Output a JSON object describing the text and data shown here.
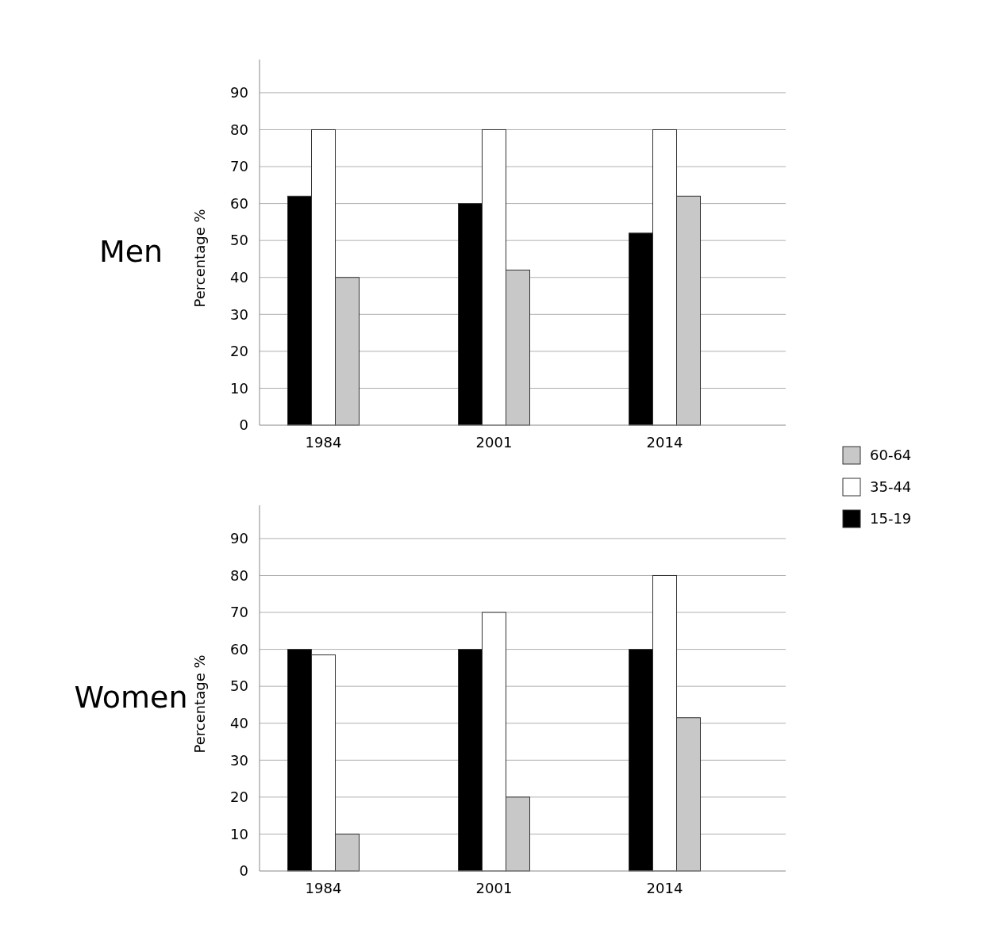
{
  "chart_data": [
    {
      "type": "bar",
      "title": "Men",
      "ylabel": "Percentage %",
      "categories": [
        "1984",
        "2001",
        "2014"
      ],
      "series": [
        {
          "name": "15-19",
          "color": "#000000",
          "values": [
            62,
            60,
            52
          ]
        },
        {
          "name": "35-44",
          "color": "#ffffff",
          "values": [
            80,
            80,
            80
          ]
        },
        {
          "name": "60-64",
          "color": "#c8c8c8",
          "values": [
            40,
            42,
            62
          ]
        }
      ],
      "ylim": [
        0,
        99
      ],
      "yticks": [
        0,
        10,
        20,
        30,
        40,
        50,
        60,
        70,
        80,
        90
      ],
      "grid": "y",
      "legend": "right"
    },
    {
      "type": "bar",
      "title": "Women",
      "ylabel": "Percentage %",
      "categories": [
        "1984",
        "2001",
        "2014"
      ],
      "series": [
        {
          "color": "#000000",
          "values": [
            60,
            60,
            60
          ]
        },
        {
          "color": "#ffffff",
          "values": [
            58.5,
            70,
            80
          ]
        },
        {
          "color": "#c8c8c8",
          "values": [
            10,
            20,
            41.5
          ]
        }
      ],
      "ylim": [
        0,
        99
      ],
      "yticks": [
        0,
        10,
        20,
        30,
        40,
        50,
        60,
        70,
        80,
        90
      ],
      "grid": "y"
    }
  ]
}
